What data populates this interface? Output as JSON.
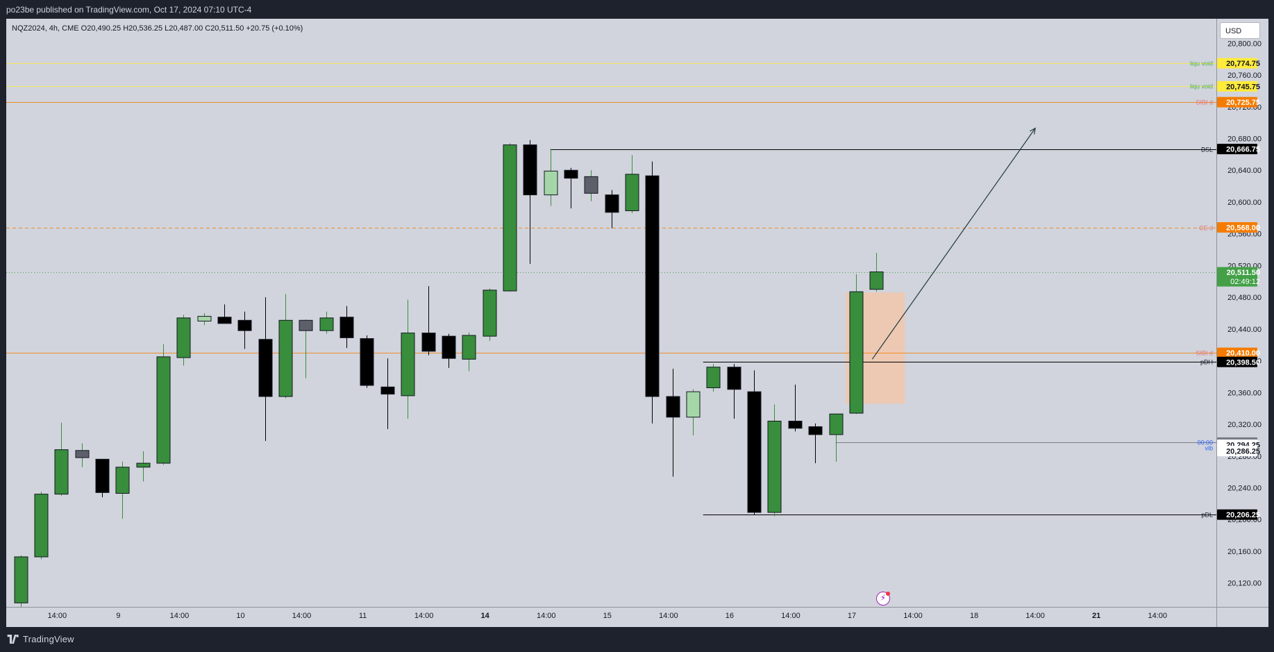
{
  "header": {
    "publish_text": "po23be published on TradingView.com, Oct 17, 2024 07:10 UTC-4"
  },
  "legend": {
    "text": "NQZ2024, 4h, CME   O20,490.25   H20,536.25   L20,487.00   C20,511.50   +20.75 (+0.10%)"
  },
  "currency_button": "USD",
  "footer": {
    "brand": "TradingView"
  },
  "colors": {
    "up": "#388e3c",
    "down": "#000000",
    "up_light": "#a5d6a7",
    "neutral": "#5d606b",
    "level_yellow": "#ffeb3b",
    "level_orange": "#f57c00",
    "last_price": "#43a047",
    "gap_box": "#f5c6a5"
  },
  "chart_data": {
    "type": "candlestick",
    "symbol": "NQZ2024",
    "timeframe": "4h",
    "ylim": [
      20090,
      20830
    ],
    "y_ticks": [
      20800,
      20760,
      20720,
      20680,
      20640,
      20600,
      20560,
      20520,
      20480,
      20440,
      20400,
      20360,
      20320,
      20280,
      20240,
      20200,
      20160,
      20120
    ],
    "y_tick_labels": [
      "20,800.00",
      "20,760.00",
      "20,720.00",
      "20,680.00",
      "20,640.00",
      "20,600.00",
      "20,560.00",
      "20,520.00",
      "20,480.00",
      "20,440.00",
      "20,400.00",
      "20,360.00",
      "20,320.00",
      "20,280.00",
      "20,240.00",
      "20,200.00",
      "20,160.00",
      "20,120.00"
    ],
    "x_labels": [
      {
        "bar": 1.8,
        "text": "14:00",
        "bold": false
      },
      {
        "bar": 4.8,
        "text": "9",
        "bold": false
      },
      {
        "bar": 7.8,
        "text": "14:00",
        "bold": false
      },
      {
        "bar": 10.8,
        "text": "10",
        "bold": false
      },
      {
        "bar": 13.8,
        "text": "14:00",
        "bold": false
      },
      {
        "bar": 16.8,
        "text": "11",
        "bold": false
      },
      {
        "bar": 19.8,
        "text": "14:00",
        "bold": false
      },
      {
        "bar": 22.8,
        "text": "14",
        "bold": true
      },
      {
        "bar": 25.8,
        "text": "14:00",
        "bold": false
      },
      {
        "bar": 28.8,
        "text": "15",
        "bold": false
      },
      {
        "bar": 31.8,
        "text": "14:00",
        "bold": false
      },
      {
        "bar": 34.8,
        "text": "16",
        "bold": false
      },
      {
        "bar": 37.8,
        "text": "14:00",
        "bold": false
      },
      {
        "bar": 40.8,
        "text": "17",
        "bold": false
      },
      {
        "bar": 43.8,
        "text": "14:00",
        "bold": false
      },
      {
        "bar": 46.8,
        "text": "18",
        "bold": false
      },
      {
        "bar": 49.8,
        "text": "14:00",
        "bold": false
      },
      {
        "bar": 52.8,
        "text": "21",
        "bold": true
      },
      {
        "bar": 55.8,
        "text": "14:00",
        "bold": false
      }
    ],
    "candles": [
      {
        "o": 20095,
        "h": 20155,
        "l": 20090,
        "c": 20153,
        "k": "up"
      },
      {
        "o": 20153,
        "h": 20235,
        "l": 20150,
        "c": 20232,
        "k": "up"
      },
      {
        "o": 20232,
        "h": 20322,
        "l": 20230,
        "c": 20288,
        "k": "up"
      },
      {
        "o": 20287,
        "h": 20296,
        "l": 20266,
        "c": 20278,
        "k": "gray"
      },
      {
        "o": 20276,
        "h": 20276,
        "l": 20228,
        "c": 20234,
        "k": "down"
      },
      {
        "o": 20233,
        "h": 20273,
        "l": 20201,
        "c": 20266,
        "k": "up"
      },
      {
        "o": 20266,
        "h": 20286,
        "l": 20248,
        "c": 20271,
        "k": "up"
      },
      {
        "o": 20271,
        "h": 20421,
        "l": 20269,
        "c": 20405,
        "k": "up"
      },
      {
        "o": 20404,
        "h": 20458,
        "l": 20394,
        "c": 20454,
        "k": "up"
      },
      {
        "o": 20450,
        "h": 20460,
        "l": 20445,
        "c": 20456,
        "k": "uplight"
      },
      {
        "o": 20455,
        "h": 20471,
        "l": 20447,
        "c": 20447,
        "k": "down"
      },
      {
        "o": 20451,
        "h": 20462,
        "l": 20415,
        "c": 20438,
        "k": "down"
      },
      {
        "o": 20427,
        "h": 20480,
        "l": 20299,
        "c": 20355,
        "k": "down"
      },
      {
        "o": 20355,
        "h": 20484,
        "l": 20353,
        "c": 20451,
        "k": "up"
      },
      {
        "o": 20451,
        "h": 20452,
        "l": 20378,
        "c": 20438,
        "k": "gray"
      },
      {
        "o": 20438,
        "h": 20462,
        "l": 20434,
        "c": 20454,
        "k": "up"
      },
      {
        "o": 20455,
        "h": 20469,
        "l": 20416,
        "c": 20429,
        "k": "down"
      },
      {
        "o": 20428,
        "h": 20432,
        "l": 20366,
        "c": 20369,
        "k": "down"
      },
      {
        "o": 20367,
        "h": 20403,
        "l": 20314,
        "c": 20358,
        "k": "down"
      },
      {
        "o": 20356,
        "h": 20477,
        "l": 20327,
        "c": 20435,
        "k": "up"
      },
      {
        "o": 20435,
        "h": 20494,
        "l": 20407,
        "c": 20412,
        "k": "down"
      },
      {
        "o": 20431,
        "h": 20434,
        "l": 20391,
        "c": 20403,
        "k": "down"
      },
      {
        "o": 20402,
        "h": 20436,
        "l": 20387,
        "c": 20432,
        "k": "up"
      },
      {
        "o": 20431,
        "h": 20491,
        "l": 20425,
        "c": 20489,
        "k": "up"
      },
      {
        "o": 20488,
        "h": 20674,
        "l": 20487,
        "c": 20672,
        "k": "up"
      },
      {
        "o": 20672,
        "h": 20678,
        "l": 20522,
        "c": 20609,
        "k": "down"
      },
      {
        "o": 20609,
        "h": 20667,
        "l": 20595,
        "c": 20639,
        "k": "uplight"
      },
      {
        "o": 20640,
        "h": 20643,
        "l": 20592,
        "c": 20630,
        "k": "down"
      },
      {
        "o": 20632,
        "h": 20640,
        "l": 20601,
        "c": 20611,
        "k": "gray"
      },
      {
        "o": 20609,
        "h": 20615,
        "l": 20567,
        "c": 20587,
        "k": "down"
      },
      {
        "o": 20589,
        "h": 20659,
        "l": 20586,
        "c": 20635,
        "k": "up"
      },
      {
        "o": 20633,
        "h": 20651,
        "l": 20321,
        "c": 20355,
        "k": "down"
      },
      {
        "o": 20355,
        "h": 20390,
        "l": 20254,
        "c": 20329,
        "k": "down"
      },
      {
        "o": 20329,
        "h": 20364,
        "l": 20306,
        "c": 20361,
        "k": "uplight"
      },
      {
        "o": 20366,
        "h": 20396,
        "l": 20361,
        "c": 20392,
        "k": "up"
      },
      {
        "o": 20392,
        "h": 20396,
        "l": 20327,
        "c": 20364,
        "k": "down"
      },
      {
        "o": 20361,
        "h": 20388,
        "l": 20206,
        "c": 20209,
        "k": "down"
      },
      {
        "o": 20209,
        "h": 20345,
        "l": 20204,
        "c": 20324,
        "k": "up"
      },
      {
        "o": 20324,
        "h": 20370,
        "l": 20311,
        "c": 20315,
        "k": "down"
      },
      {
        "o": 20317,
        "h": 20321,
        "l": 20271,
        "c": 20307,
        "k": "down"
      },
      {
        "o": 20307,
        "h": 20333,
        "l": 20273,
        "c": 20333,
        "k": "up"
      },
      {
        "o": 20334,
        "h": 20509,
        "l": 20333,
        "c": 20487,
        "k": "up"
      },
      {
        "o": 20490,
        "h": 20536,
        "l": 20487,
        "c": 20512,
        "k": "up"
      }
    ],
    "levels": [
      {
        "price": 20774.75,
        "label": "liqu void",
        "badge": "20,774.75",
        "color": "#ffeb3b",
        "badge_text": "#131722",
        "style": "solid",
        "label_color": "#4caf50"
      },
      {
        "price": 20745.75,
        "label": "liqu void",
        "badge": "20,745.75",
        "color": "#ffeb3b",
        "badge_text": "#131722",
        "style": "solid",
        "label_color": "#4caf50"
      },
      {
        "price": 20725.75,
        "label": "SIBI d",
        "badge": "20,725.75",
        "color": "#f57c00",
        "badge_text": "#ffffff",
        "style": "solid",
        "label_color": "#e57373"
      },
      {
        "price": 20666.75,
        "label": "BSL",
        "badge": "20,666.75",
        "color": "#000000",
        "badge_text": "#ffffff",
        "style": "solid",
        "label_color": "#131722",
        "from_bar": 26
      },
      {
        "price": 20568.0,
        "label": "CE d",
        "badge": "20,568.00",
        "color": "#f57c00",
        "badge_text": "#ffffff",
        "style": "dashed",
        "label_color": "#e57373"
      },
      {
        "price": 20511.5,
        "label": "",
        "badge": "20,511.50",
        "badge2": "02:49:12",
        "color": "#43a047",
        "badge_text": "#ffffff",
        "style": "dotted",
        "label_color": "#43a047"
      },
      {
        "price": 20410.0,
        "label": "SIBI d",
        "badge": "20,410.00",
        "color": "#f57c00",
        "badge_text": "#ffffff",
        "style": "solid",
        "label_color": "#e57373"
      },
      {
        "price": 20398.5,
        "label": "pDH",
        "badge": "20,398.50",
        "color": "#000000",
        "badge_text": "#ffffff",
        "style": "solid",
        "label_color": "#131722",
        "from_bar": 33.5
      },
      {
        "price": 20297.0,
        "label": "00:00",
        "badge": "20,297.00",
        "color": "#787b86",
        "badge_text": "#ffffff",
        "style": "solid",
        "label_color": "#2962ff",
        "from_bar": 40
      },
      {
        "price": 20294.25,
        "label": "",
        "badge": "20,294.25",
        "color": "#ffffff",
        "badge_text": "#131722",
        "style": "none",
        "label_color": "#131722"
      },
      {
        "price": 20290.0,
        "label": "vib",
        "badge": "",
        "color": "#ffffff",
        "badge_text": "#131722",
        "style": "none",
        "label_color": "#2962ff"
      },
      {
        "price": 20286.25,
        "label": "",
        "badge": "20,286.25",
        "color": "#ffffff",
        "badge_text": "#131722",
        "style": "none",
        "label_color": "#131722"
      },
      {
        "price": 20206.25,
        "label": "pDL",
        "badge": "20,206.25",
        "color": "#000000",
        "badge_text": "#ffffff",
        "style": "solid",
        "label_color": "#131722",
        "from_bar": 33.5
      }
    ],
    "gap_box": {
      "bar_from": 40.5,
      "bar_to": 43.4,
      "price_from": 20346,
      "price_to": 20486
    },
    "arrow": {
      "bar_from": 41.8,
      "price_from": 20402,
      "bar_to": 49.8,
      "price_to": 20693
    }
  }
}
